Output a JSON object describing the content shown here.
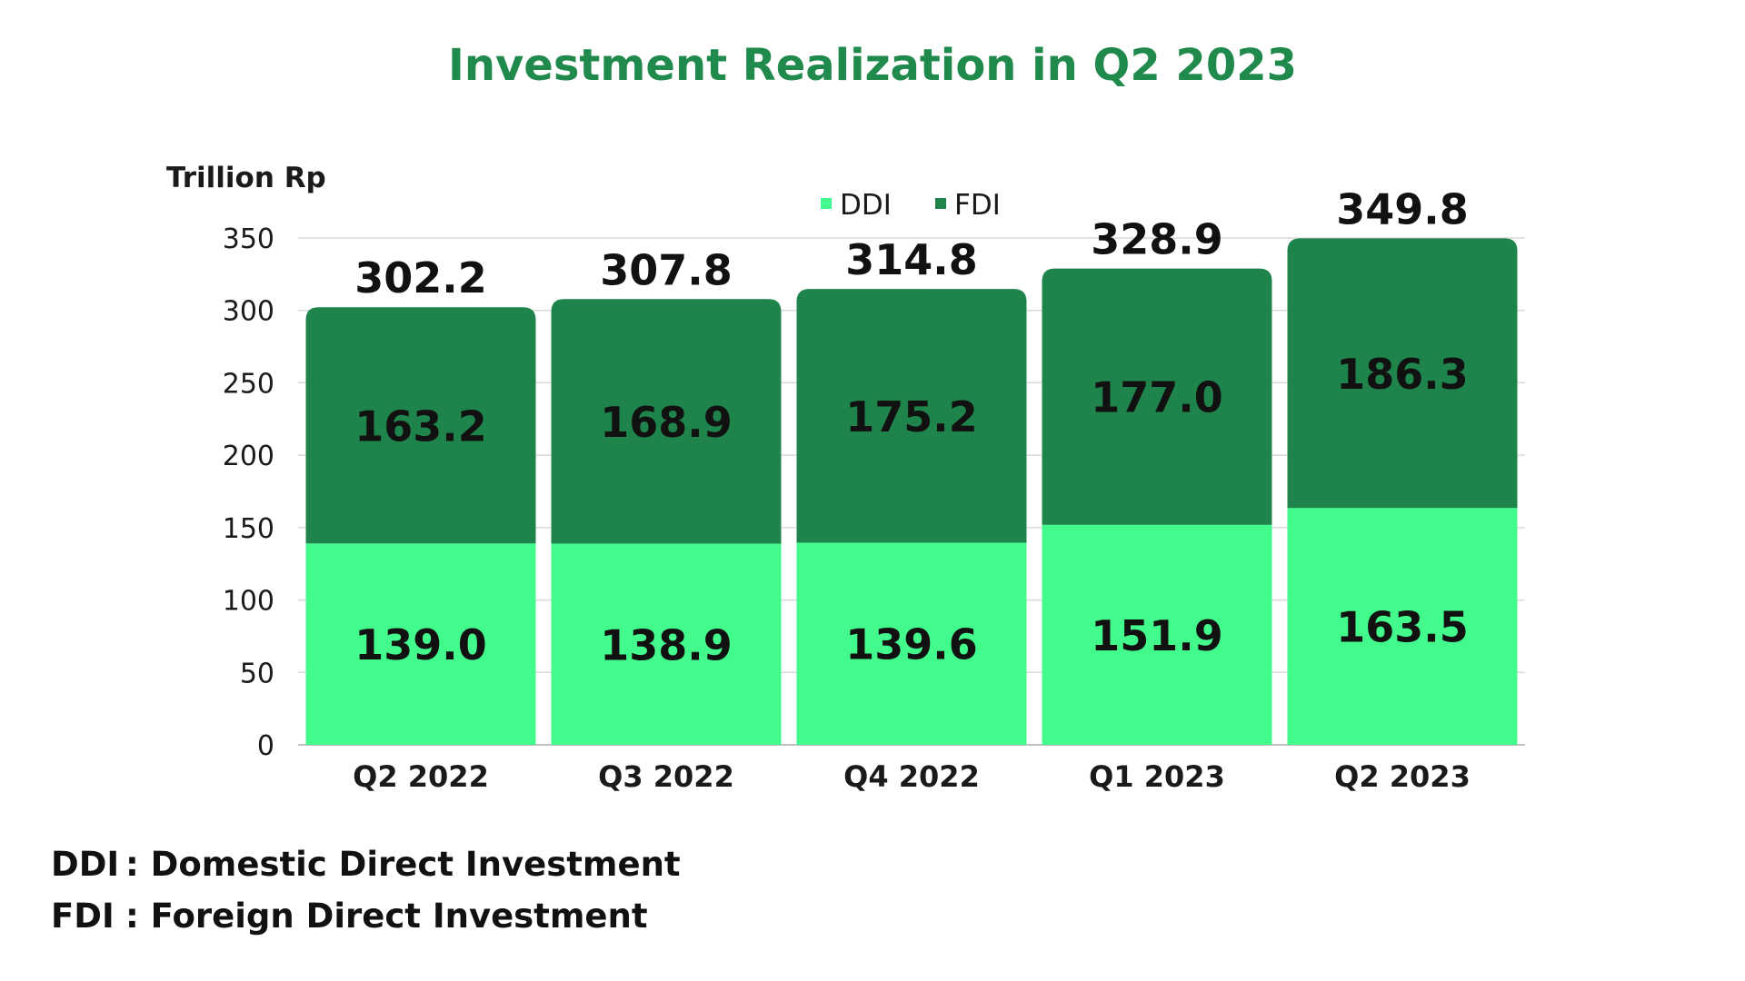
{
  "colors": {
    "title": "#1f8a4c",
    "ddi": "#43fb8c",
    "fdi": "#1f844c",
    "grid": "#d9d9d9",
    "axis": "#bfbfbf"
  },
  "chart_data": {
    "type": "bar",
    "stacked": true,
    "title": "Investment Realization in Q2 2023",
    "ylabel": "Trillion Rp",
    "xlabel": "",
    "ylim": [
      0,
      350
    ],
    "yticks": [
      0,
      50,
      100,
      150,
      200,
      250,
      300,
      350
    ],
    "grid": true,
    "legend_position": "top-center",
    "categories": [
      "Q2 2022",
      "Q3 2022",
      "Q4 2022",
      "Q1 2023",
      "Q2 2023"
    ],
    "series": [
      {
        "name": "DDI",
        "values": [
          139.0,
          138.9,
          139.6,
          151.9,
          163.5
        ],
        "labels": [
          "139.0",
          "138.9",
          "139.6",
          "151.9",
          "163.5"
        ]
      },
      {
        "name": "FDI",
        "values": [
          163.2,
          168.9,
          175.2,
          177.0,
          186.3
        ],
        "labels": [
          "163.2",
          "168.9",
          "175.2",
          "177.0",
          "186.3"
        ]
      }
    ],
    "totals": [
      302.2,
      307.8,
      314.8,
      328.9,
      349.8
    ],
    "total_labels": [
      "302.2",
      "307.8",
      "314.8",
      "328.9",
      "349.8"
    ]
  },
  "footnotes": [
    {
      "abbr": "DDI",
      "text": ": Domestic Direct Investment"
    },
    {
      "abbr": "FDI",
      "text": ": Foreign Direct Investment"
    }
  ]
}
